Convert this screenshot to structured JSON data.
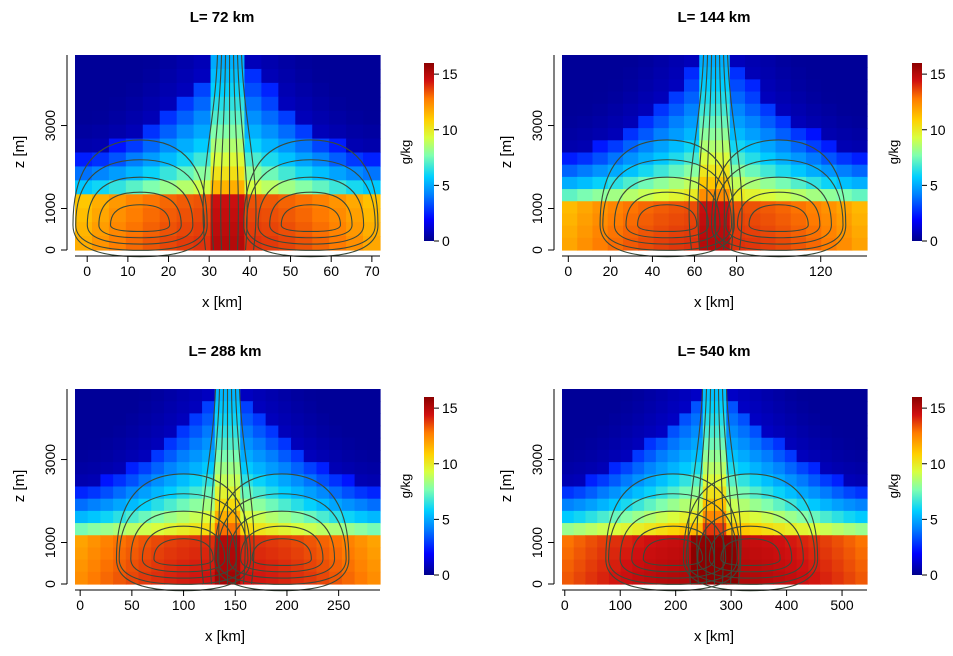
{
  "colors": {
    "colormap": [
      "#00008b",
      "#0000ff",
      "#0080ff",
      "#00cfff",
      "#7fffb0",
      "#d8ff40",
      "#ffd000",
      "#ff7a00",
      "#d01010",
      "#8b0000"
    ],
    "contour": "#3a4a3a"
  },
  "chart_data": [
    {
      "type": "heatmap",
      "title": "L=  72  km",
      "xlabel": "x [km]",
      "ylabel": "z [m]",
      "xlim": [
        -3,
        72
      ],
      "ylim": [
        0,
        4700
      ],
      "x_ticks": [
        "0",
        "10",
        "20",
        "30",
        "40",
        "50",
        "60",
        "70"
      ],
      "y_ticks": [
        "0",
        "1000",
        "3000"
      ],
      "colorbar": {
        "label": "g/kg",
        "range": [
          0,
          16
        ],
        "ticks": [
          "0",
          "5",
          "10",
          "15"
        ]
      },
      "nx": 18,
      "nz": 14,
      "surface_max": 13.8,
      "vortex_centers_km": [
        13,
        55
      ],
      "contours": "streamlines (black)"
    },
    {
      "type": "heatmap",
      "title": "L=  144  km",
      "xlabel": "x [km]",
      "ylabel": "z [m]",
      "xlim": [
        -3,
        142
      ],
      "ylim": [
        0,
        4700
      ],
      "x_ticks": [
        "0",
        "20",
        "40",
        "60",
        "80",
        "120"
      ],
      "y_ticks": [
        "0",
        "1000",
        "3000"
      ],
      "colorbar": {
        "label": "g/kg",
        "range": [
          0,
          16
        ],
        "ticks": [
          "0",
          "5",
          "10",
          "15"
        ]
      },
      "nx": 20,
      "nz": 16,
      "surface_max": 13.8,
      "vortex_centers_km": [
        47,
        100
      ],
      "contours": "streamlines (black)"
    },
    {
      "type": "heatmap",
      "title": "L=  288  km",
      "xlabel": "x [km]",
      "ylabel": "z [m]",
      "xlim": [
        -5,
        290
      ],
      "ylim": [
        0,
        4700
      ],
      "x_ticks": [
        "0",
        "50",
        "100",
        "150",
        "200",
        "250"
      ],
      "y_ticks": [
        "0",
        "1000",
        "3000"
      ],
      "colorbar": {
        "label": "g/kg",
        "range": [
          0,
          16
        ],
        "ticks": [
          "0",
          "5",
          "10",
          "15"
        ]
      },
      "nx": 24,
      "nz": 16,
      "surface_max": 14.3,
      "vortex_centers_km": [
        100,
        195
      ],
      "contours": "streamlines (black)"
    },
    {
      "type": "heatmap",
      "title": "L=  540  km",
      "xlabel": "x [km]",
      "ylabel": "z [m]",
      "xlim": [
        -5,
        545
      ],
      "ylim": [
        0,
        4700
      ],
      "x_ticks": [
        "0",
        "100",
        "200",
        "300",
        "400",
        "500"
      ],
      "y_ticks": [
        "0",
        "1000",
        "3000"
      ],
      "colorbar": {
        "label": "g/kg",
        "range": [
          0,
          16
        ],
        "ticks": [
          "0",
          "5",
          "10",
          "15"
        ]
      },
      "nx": 26,
      "nz": 16,
      "surface_max": 15.2,
      "vortex_centers_km": [
        195,
        335
      ],
      "contours": "streamlines (black)"
    }
  ]
}
